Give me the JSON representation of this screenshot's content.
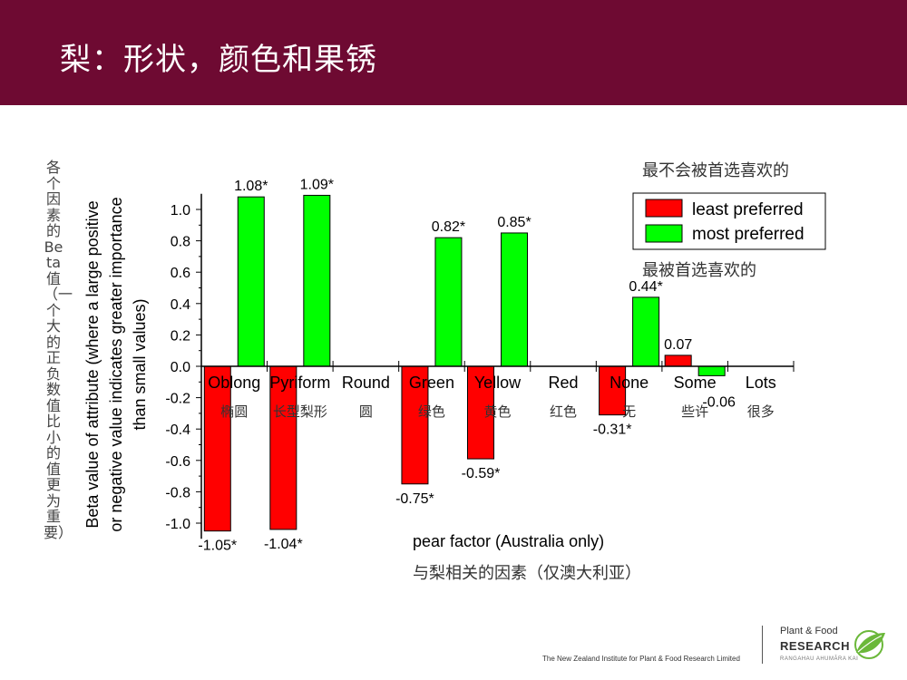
{
  "slide": {
    "title": "梨：形状，颜色和果锈",
    "vertical_label_cn": "各个因素的Beta值（一个大的正负数值比小的值更为重要）",
    "footer": "The New Zealand Institute for Plant & Food Research Limited",
    "logo": {
      "line1": "Plant & Food",
      "line2": "RESEARCH",
      "line3": "RANGAHAU AHUMĀRA KAI"
    }
  },
  "colors": {
    "header": "#6e0a32",
    "least": "#ff0000",
    "most": "#00ff00"
  },
  "chart_data": {
    "type": "bar",
    "ylabel": "Beta value of attribute (where a large positive or negative value indicates greater importance than small values)",
    "ylabel_lines": [
      "Beta value of attribute (where a large positive",
      "or negative value indicates greater importance",
      "than small values)"
    ],
    "xlabel": "pear factor (Australia only)",
    "xlabel_cn": "与梨相关的因素（仅澳大利亚）",
    "ylim": [
      -1.1,
      1.1
    ],
    "yticks": [
      -1.0,
      -0.8,
      -0.6,
      -0.4,
      -0.2,
      0.0,
      0.2,
      0.4,
      0.6,
      0.8,
      1.0
    ],
    "ytick_labels": [
      "-1.0",
      "-0.8",
      "-0.6",
      "-0.4",
      "-0.2",
      "0.0",
      "0.2",
      "0.4",
      "0.6",
      "0.8",
      "1.0"
    ],
    "categories": [
      "Oblong",
      "Pyriform",
      "Round",
      "Green",
      "Yellow",
      "Red",
      "None",
      "Some",
      "Lots"
    ],
    "categories_cn": [
      "椭圆",
      "长型梨形",
      "圆",
      "绿色",
      "黄色",
      "红色",
      "无",
      "些许",
      "很多"
    ],
    "legend_position": "top-right",
    "series": [
      {
        "name": "least preferred",
        "name_cn": "最不会被首选喜欢的",
        "color": "#ff0000",
        "values": [
          -1.05,
          -1.04,
          null,
          -0.75,
          -0.59,
          null,
          -0.31,
          null,
          null
        ],
        "labels": [
          "-1.05*",
          "-1.04*",
          null,
          "-0.75*",
          "-0.59*",
          null,
          "-0.31*",
          null,
          null
        ]
      },
      {
        "name": "most preferred",
        "name_cn": "最被首选喜欢的",
        "color": "#00ff00",
        "values": [
          1.08,
          1.09,
          null,
          0.82,
          0.85,
          null,
          0.44,
          -0.06,
          null
        ],
        "labels": [
          "1.08*",
          "1.09*",
          null,
          "0.82*",
          "0.85*",
          null,
          "0.44*",
          "-0.06",
          null
        ]
      },
      {
        "name": "",
        "color": "#ff0000",
        "values": [
          null,
          null,
          null,
          null,
          null,
          null,
          null,
          0.07,
          null
        ],
        "labels": [
          null,
          null,
          null,
          null,
          null,
          null,
          null,
          "0.07",
          null
        ]
      }
    ]
  }
}
